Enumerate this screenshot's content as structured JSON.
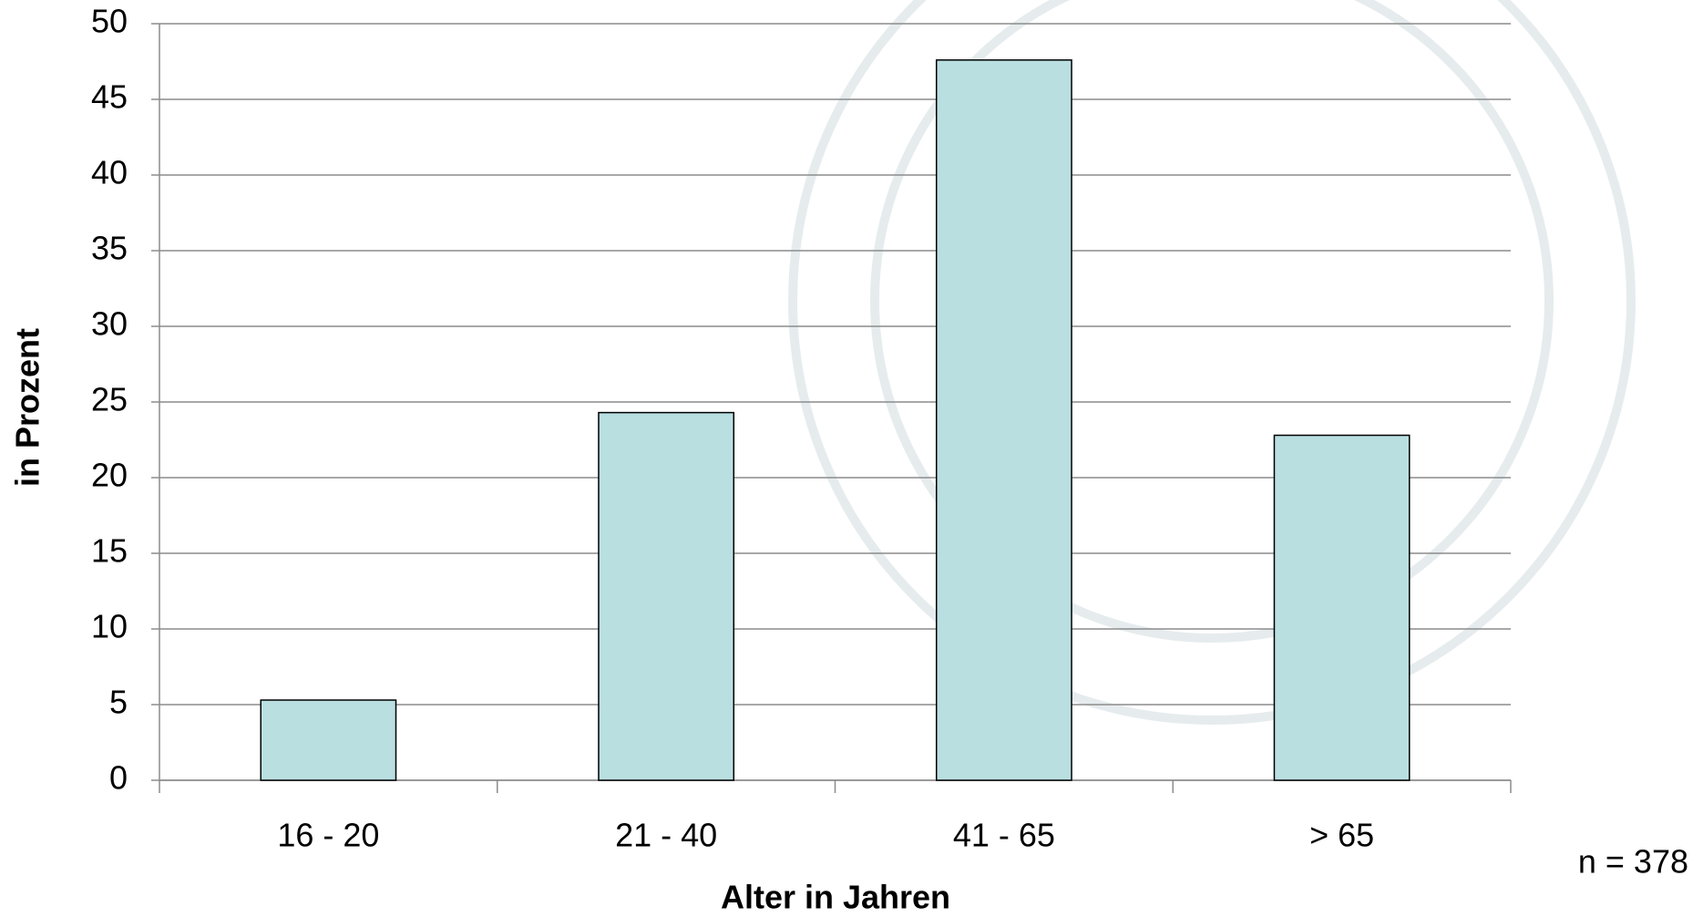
{
  "chart_data": {
    "type": "bar",
    "categories": [
      "16 - 20",
      "21 - 40",
      "41 - 65",
      "> 65"
    ],
    "values": [
      5.3,
      24.3,
      47.6,
      22.8
    ],
    "color": "#b9dfe1",
    "ylim": [
      0,
      50
    ],
    "yticks": [
      0,
      5,
      10,
      15,
      20,
      25,
      30,
      35,
      40,
      45,
      50
    ],
    "grid": true,
    "x_label": "Alter in Jahren",
    "y_label": "in Prozent",
    "annotation": "n = 378"
  }
}
